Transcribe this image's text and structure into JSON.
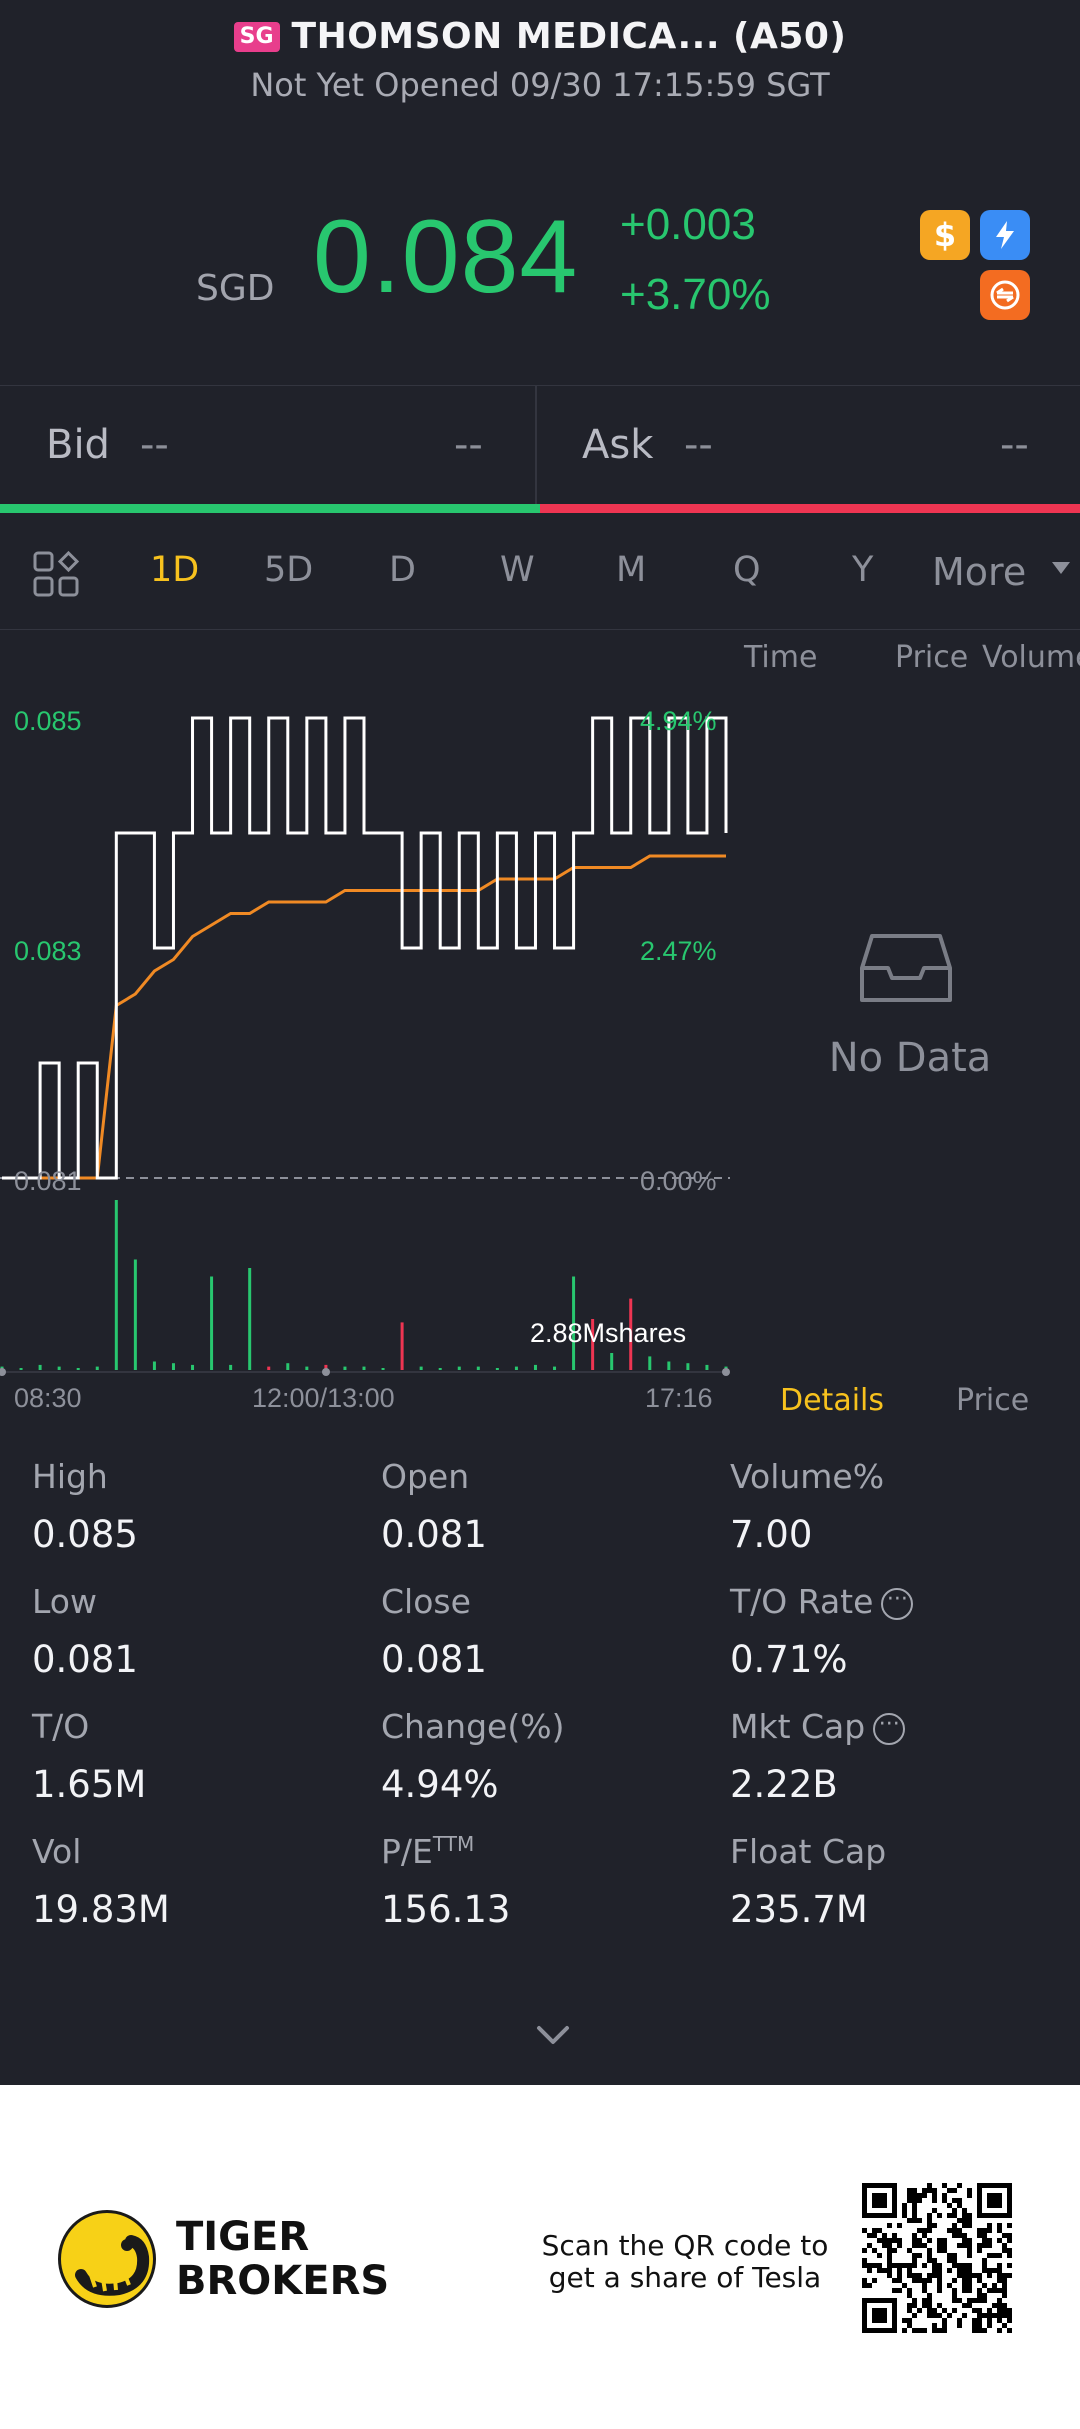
{
  "header": {
    "market_badge": "SG",
    "title": "THOMSON MEDICA... (A50)",
    "subtitle": "Not Yet Opened 09/30 17:15:59 SGT"
  },
  "quote": {
    "currency": "SGD",
    "price": "0.084",
    "change": "+0.003",
    "change_pct": "+3.70%",
    "icons": [
      "dollar-icon",
      "flash-icon",
      "swap-icon"
    ],
    "up_color": "#28c76f",
    "down_color": "#ee3552"
  },
  "bid_ask": {
    "bid_label": "Bid",
    "bid_price": "--",
    "bid_size": "--",
    "ask_label": "Ask",
    "ask_price": "--",
    "ask_size": "--"
  },
  "tabs": {
    "items": [
      "1D",
      "5D",
      "D",
      "W",
      "M",
      "Q",
      "Y",
      "More"
    ],
    "active": "1D"
  },
  "chart_data": {
    "type": "line",
    "series": [
      {
        "values": [
          0.081,
          0.081,
          0.082,
          0.081,
          0.082,
          0.081,
          0.084,
          0.084,
          0.083,
          0.084,
          0.085,
          0.084,
          0.085,
          0.084,
          0.085,
          0.084,
          0.085,
          0.084,
          0.085,
          0.084,
          0.084,
          0.083,
          0.084,
          0.083,
          0.084,
          0.083,
          0.084,
          0.083,
          0.084,
          0.083,
          0.084,
          0.085,
          0.084,
          0.085,
          0.084,
          0.085,
          0.084,
          0.085,
          0.084
        ]
      },
      {
        "values": [
          0.081,
          0.081,
          0.081,
          0.081,
          0.081,
          0.081,
          0.0825,
          0.0826,
          0.0828,
          0.0829,
          0.0831,
          0.0832,
          0.0833,
          0.0833,
          0.0834,
          0.0834,
          0.0834,
          0.0834,
          0.0835,
          0.0835,
          0.0835,
          0.0835,
          0.0835,
          0.0835,
          0.0835,
          0.0835,
          0.0836,
          0.0836,
          0.0836,
          0.0836,
          0.0837,
          0.0837,
          0.0837,
          0.0837,
          0.0838,
          0.0838,
          0.0838,
          0.0838,
          0.0838
        ]
      }
    ],
    "volume": [
      0.02,
      0.01,
      0.03,
      0.02,
      0.01,
      0.02,
      1.0,
      0.65,
      0.05,
      0.04,
      0.03,
      0.55,
      0.03,
      0.6,
      0.02,
      0.04,
      0.02,
      0.03,
      0.02,
      0.02,
      0.01,
      0.28,
      0.02,
      0.01,
      0.02,
      0.02,
      0.01,
      0.02,
      0.03,
      0.02,
      0.55,
      0.3,
      0.1,
      0.42,
      0.08,
      0.05,
      0.04,
      0.03,
      0.02
    ],
    "volume_colors": [
      "g",
      "g",
      "g",
      "g",
      "g",
      "g",
      "g",
      "g",
      "g",
      "g",
      "g",
      "g",
      "g",
      "g",
      "r",
      "g",
      "g",
      "r",
      "g",
      "g",
      "g",
      "r",
      "g",
      "g",
      "g",
      "g",
      "g",
      "g",
      "g",
      "g",
      "g",
      "r",
      "g",
      "r",
      "g",
      "g",
      "g",
      "g",
      "g"
    ],
    "y_labels": [
      "0.085",
      "0.083",
      "0.081"
    ],
    "pct_labels": [
      "4.94%",
      "2.47%",
      "0.00%"
    ],
    "x_labels": [
      "08:30",
      "12:00/13:00",
      "17:16"
    ],
    "ylim": [
      0.081,
      0.085
    ],
    "volume_label": "2.88Mshares"
  },
  "side_panel": {
    "headers": [
      "Time",
      "Price",
      "Volume"
    ],
    "empty_text": "No Data",
    "tabs": [
      "Details",
      "Price"
    ]
  },
  "stats": {
    "high_label": "High",
    "high": "0.085",
    "open_label": "Open",
    "open": "0.081",
    "volpct_label": "Volume%",
    "volpct": "7.00",
    "low_label": "Low",
    "low": "0.081",
    "close_label": "Close",
    "close": "0.081",
    "torate_label": "T/O Rate",
    "torate": "0.71%",
    "to_label": "T/O",
    "to": "1.65M",
    "chg_label": "Change(%)",
    "chg": "4.94%",
    "mktcap_label": "Mkt Cap",
    "mktcap": "2.22B",
    "vol_label": "Vol",
    "vol": "19.83M",
    "pe_label": "P/E",
    "pe_sup": "TTM",
    "pe": "156.13",
    "floatcap_label": "Float Cap",
    "floatcap": "235.7M"
  },
  "footer": {
    "brand_line1": "TIGER",
    "brand_line2": "BROKERS",
    "scan_line1": "Scan the QR code to",
    "scan_line2": "get a share of Tesla"
  }
}
